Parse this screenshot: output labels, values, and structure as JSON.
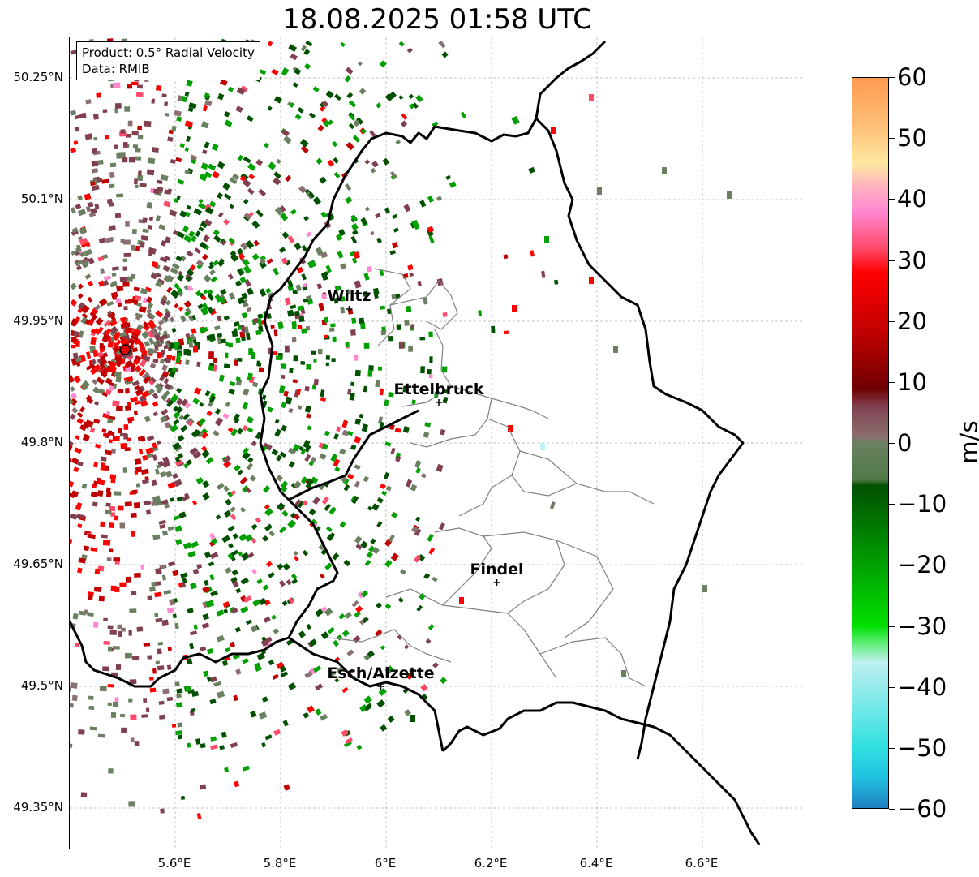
{
  "title": "18.08.2025 01:58 UTC",
  "info": {
    "product": "Product: 0.5° Radial Velocity",
    "data": "Data: RMIB"
  },
  "axes": {
    "lat_ticks": [
      "50.25°N",
      "50.1°N",
      "49.95°N",
      "49.8°N",
      "49.65°N",
      "49.5°N",
      "49.35°N"
    ],
    "lon_ticks": [
      "5.6°E",
      "5.8°E",
      "6°E",
      "6.2°E",
      "6.4°E",
      "6.6°E"
    ],
    "lat_range": [
      49.3,
      50.3
    ],
    "lon_range": [
      5.4,
      6.8
    ]
  },
  "cities": [
    {
      "name": "Wiltz",
      "lon": 5.93,
      "lat": 49.965
    },
    {
      "name": "Ettelbruck",
      "lon": 6.1,
      "lat": 49.85
    },
    {
      "name": "Findel",
      "lon": 6.21,
      "lat": 49.628
    },
    {
      "name": "Esch/Alzette",
      "lon": 5.99,
      "lat": 49.5
    }
  ],
  "radar_site": {
    "lon": 5.505,
    "lat": 49.915
  },
  "colorbar": {
    "unit": "m/s",
    "ticks": [
      "60",
      "50",
      "40",
      "30",
      "20",
      "10",
      "0",
      "−10",
      "−20",
      "−30",
      "−40",
      "−50",
      "−60"
    ],
    "range": [
      -60,
      60
    ],
    "stops": [
      {
        "v": 60,
        "color": "#ff9a50"
      },
      {
        "v": 52,
        "color": "#ffc078"
      },
      {
        "v": 46,
        "color": "#ffe8a0"
      },
      {
        "v": 42,
        "color": "#ffb0c0"
      },
      {
        "v": 38,
        "color": "#ff88d0"
      },
      {
        "v": 32,
        "color": "#ff4a6a"
      },
      {
        "v": 28,
        "color": "#ff0000"
      },
      {
        "v": 18,
        "color": "#c00000"
      },
      {
        "v": 9,
        "color": "#700000"
      },
      {
        "v": 6,
        "color": "#804050"
      },
      {
        "v": 1,
        "color": "#8a7070"
      },
      {
        "v": 0,
        "color": "#6a8060"
      },
      {
        "v": -6,
        "color": "#507a48"
      },
      {
        "v": -7,
        "color": "#005000"
      },
      {
        "v": -20,
        "color": "#00a000"
      },
      {
        "v": -30,
        "color": "#00e000"
      },
      {
        "v": -34,
        "color": "#80f0a0"
      },
      {
        "v": -36,
        "color": "#c0f0f0"
      },
      {
        "v": -50,
        "color": "#30e0e0"
      },
      {
        "v": -55,
        "color": "#20c0e0"
      },
      {
        "v": -60,
        "color": "#2080c0"
      }
    ]
  },
  "colors": {
    "border": "#000000",
    "district": "#808080",
    "grid": "#b0b0b0",
    "radar_site": "#e00000"
  }
}
